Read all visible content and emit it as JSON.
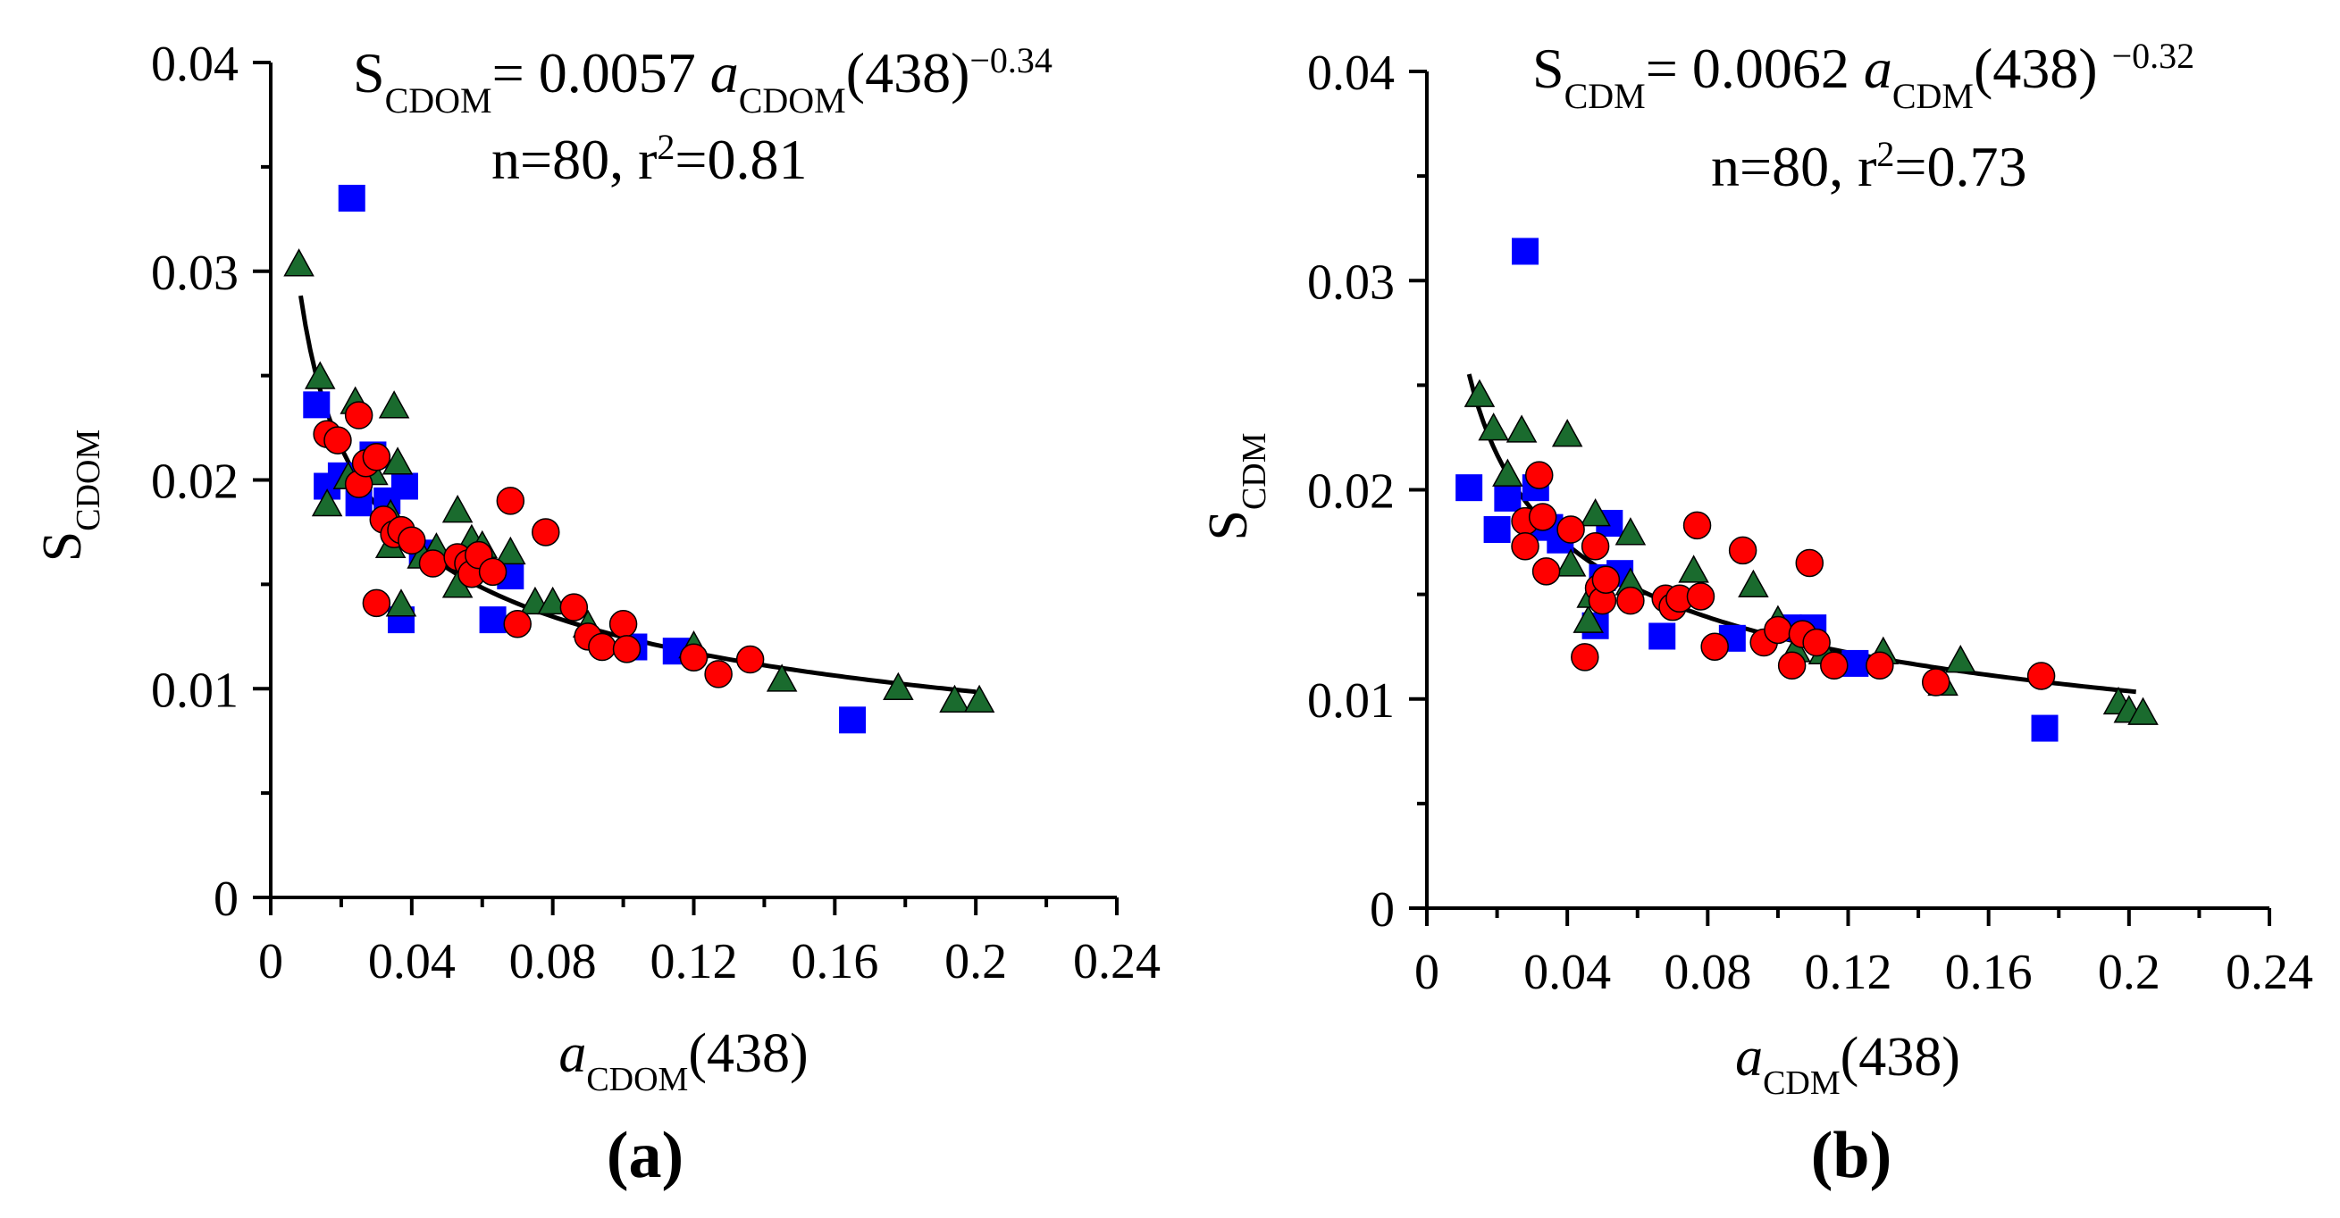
{
  "chart_data": [
    {
      "type": "scatter",
      "panel_label": "(a)",
      "equation": {
        "s_base": "S",
        "s_sub": "CDOM",
        "eq_mid": "= 0.0057 ",
        "a_base": "a",
        "a_sub": "CDOM",
        "arg": "(438)",
        "exp": "−0.34"
      },
      "stats": {
        "pre": "n=80, r",
        "sup": "2",
        "post": "=0.81"
      },
      "xlabel": {
        "base": "a",
        "sub": "CDOM",
        "rest": "(438)"
      },
      "ylabel": {
        "base": "S",
        "sub": "CDOM"
      },
      "xlim": [
        0,
        0.24
      ],
      "ylim": [
        0,
        0.04
      ],
      "x_ticks": [
        0,
        0.04,
        0.08,
        0.12,
        0.16,
        0.2,
        0.24
      ],
      "x_tick_labels": [
        "0",
        "0.04",
        "0.08",
        "0.12",
        "0.16",
        "0.2",
        "0.24"
      ],
      "y_ticks": [
        0,
        0.01,
        0.02,
        0.03,
        0.04
      ],
      "y_tick_labels": [
        "0",
        "0.01",
        "0.02",
        "0.03",
        "0.04"
      ],
      "fit": {
        "coef": 0.0057,
        "exp": -0.34,
        "x_range": [
          0.0085,
          0.2
        ]
      },
      "series": [
        {
          "name": "squares",
          "marker": "square",
          "color": "#0000ff",
          "points": [
            [
              0.023,
              0.0335
            ],
            [
              0.013,
              0.0236
            ],
            [
              0.016,
              0.0197
            ],
            [
              0.02,
              0.0202
            ],
            [
              0.025,
              0.0189
            ],
            [
              0.029,
              0.0212
            ],
            [
              0.033,
              0.019
            ],
            [
              0.038,
              0.0197
            ],
            [
              0.037,
              0.0133
            ],
            [
              0.043,
              0.0165
            ],
            [
              0.063,
              0.0133
            ],
            [
              0.068,
              0.0154
            ],
            [
              0.103,
              0.012
            ],
            [
              0.115,
              0.0118
            ],
            [
              0.165,
              0.0085
            ]
          ]
        },
        {
          "name": "triangles",
          "marker": "triangle",
          "color": "#1a6b2e",
          "points": [
            [
              0.008,
              0.0303
            ],
            [
              0.014,
              0.0249
            ],
            [
              0.016,
              0.0188
            ],
            [
              0.024,
              0.0237
            ],
            [
              0.022,
              0.0201
            ],
            [
              0.029,
              0.0203
            ],
            [
              0.034,
              0.0183
            ],
            [
              0.035,
              0.0235
            ],
            [
              0.036,
              0.0208
            ],
            [
              0.034,
              0.0168
            ],
            [
              0.037,
              0.014
            ],
            [
              0.043,
              0.0163
            ],
            [
              0.047,
              0.0167
            ],
            [
              0.053,
              0.0185
            ],
            [
              0.053,
              0.0149
            ],
            [
              0.057,
              0.0171
            ],
            [
              0.06,
              0.0168
            ],
            [
              0.068,
              0.0165
            ],
            [
              0.075,
              0.0141
            ],
            [
              0.08,
              0.0141
            ],
            [
              0.09,
              0.013
            ],
            [
              0.12,
              0.012
            ],
            [
              0.145,
              0.0104
            ],
            [
              0.178,
              0.01
            ],
            [
              0.194,
              0.0094
            ],
            [
              0.201,
              0.0094
            ]
          ]
        },
        {
          "name": "circles",
          "marker": "circle",
          "color": "#ff0000",
          "points": [
            [
              0.016,
              0.0222
            ],
            [
              0.019,
              0.0219
            ],
            [
              0.025,
              0.0231
            ],
            [
              0.025,
              0.0198
            ],
            [
              0.027,
              0.0208
            ],
            [
              0.03,
              0.0211
            ],
            [
              0.03,
              0.0141
            ],
            [
              0.032,
              0.0181
            ],
            [
              0.035,
              0.0174
            ],
            [
              0.037,
              0.0176
            ],
            [
              0.04,
              0.0171
            ],
            [
              0.046,
              0.016
            ],
            [
              0.053,
              0.0163
            ],
            [
              0.056,
              0.016
            ],
            [
              0.057,
              0.0155
            ],
            [
              0.059,
              0.0164
            ],
            [
              0.063,
              0.0156
            ],
            [
              0.068,
              0.019
            ],
            [
              0.07,
              0.0131
            ],
            [
              0.078,
              0.0175
            ],
            [
              0.086,
              0.0139
            ],
            [
              0.09,
              0.0125
            ],
            [
              0.094,
              0.012
            ],
            [
              0.1,
              0.0131
            ],
            [
              0.101,
              0.0119
            ],
            [
              0.12,
              0.0115
            ],
            [
              0.127,
              0.0107
            ],
            [
              0.136,
              0.0114
            ]
          ]
        }
      ]
    },
    {
      "type": "scatter",
      "panel_label": "(b)",
      "equation": {
        "s_base": "S",
        "s_sub": "CDM",
        "eq_mid": "= 0.0062 ",
        "a_base": "a",
        "a_sub": "CDM",
        "arg": "(438) ",
        "exp": "−0.32"
      },
      "stats": {
        "pre": "n=80, r",
        "sup": "2",
        "post": "=0.73"
      },
      "xlabel": {
        "base": "a",
        "sub": "CDM",
        "rest": "(438)"
      },
      "ylabel": {
        "base": "S",
        "sub": "CDM"
      },
      "xlim": [
        0,
        0.24
      ],
      "ylim": [
        0,
        0.04
      ],
      "x_ticks": [
        0,
        0.04,
        0.08,
        0.12,
        0.16,
        0.2,
        0.24
      ],
      "x_tick_labels": [
        "0",
        "0.04",
        "0.08",
        "0.12",
        "0.16",
        "0.2",
        "0.24"
      ],
      "y_ticks": [
        0,
        0.01,
        0.02,
        0.03,
        0.04
      ],
      "y_tick_labels": [
        "0",
        "0.01",
        "0.02",
        "0.03",
        "0.04"
      ],
      "fit": {
        "coef": 0.0062,
        "exp": -0.32,
        "x_range": [
          0.012,
          0.202
        ]
      },
      "series": [
        {
          "name": "squares",
          "marker": "square",
          "color": "#0000ff",
          "points": [
            [
              0.028,
              0.0314
            ],
            [
              0.012,
              0.0201
            ],
            [
              0.02,
              0.0181
            ],
            [
              0.023,
              0.0196
            ],
            [
              0.031,
              0.0201
            ],
            [
              0.033,
              0.0183
            ],
            [
              0.035,
              0.0182
            ],
            [
              0.038,
              0.0176
            ],
            [
              0.048,
              0.0135
            ],
            [
              0.05,
              0.0158
            ],
            [
              0.052,
              0.0184
            ],
            [
              0.055,
              0.016
            ],
            [
              0.067,
              0.013
            ],
            [
              0.087,
              0.0129
            ],
            [
              0.103,
              0.0134
            ],
            [
              0.11,
              0.0134
            ],
            [
              0.122,
              0.0117
            ],
            [
              0.176,
              0.0086
            ]
          ]
        },
        {
          "name": "triangles",
          "marker": "triangle",
          "color": "#1a6b2e",
          "points": [
            [
              0.015,
              0.0245
            ],
            [
              0.019,
              0.0229
            ],
            [
              0.023,
              0.0207
            ],
            [
              0.027,
              0.0228
            ],
            [
              0.04,
              0.0226
            ],
            [
              0.041,
              0.0164
            ],
            [
              0.046,
              0.0137
            ],
            [
              0.047,
              0.0149
            ],
            [
              0.048,
              0.0188
            ],
            [
              0.058,
              0.0179
            ],
            [
              0.058,
              0.0155
            ],
            [
              0.076,
              0.0161
            ],
            [
              0.093,
              0.0154
            ],
            [
              0.1,
              0.0137
            ],
            [
              0.105,
              0.0123
            ],
            [
              0.113,
              0.0122
            ],
            [
              0.13,
              0.0122
            ],
            [
              0.147,
              0.0107
            ],
            [
              0.152,
              0.0118
            ],
            [
              0.197,
              0.0098
            ],
            [
              0.2,
              0.0094
            ],
            [
              0.204,
              0.0093
            ]
          ]
        },
        {
          "name": "circles",
          "marker": "circle",
          "color": "#ff0000",
          "points": [
            [
              0.028,
              0.0185
            ],
            [
              0.028,
              0.0173
            ],
            [
              0.032,
              0.0207
            ],
            [
              0.033,
              0.0187
            ],
            [
              0.034,
              0.0161
            ],
            [
              0.041,
              0.0181
            ],
            [
              0.045,
              0.012
            ],
            [
              0.048,
              0.0173
            ],
            [
              0.049,
              0.0153
            ],
            [
              0.05,
              0.0147
            ],
            [
              0.051,
              0.0157
            ],
            [
              0.058,
              0.0147
            ],
            [
              0.068,
              0.0148
            ],
            [
              0.07,
              0.0144
            ],
            [
              0.072,
              0.0148
            ],
            [
              0.077,
              0.0183
            ],
            [
              0.078,
              0.0149
            ],
            [
              0.082,
              0.0125
            ],
            [
              0.09,
              0.0171
            ],
            [
              0.096,
              0.0127
            ],
            [
              0.1,
              0.0133
            ],
            [
              0.104,
              0.0116
            ],
            [
              0.107,
              0.0131
            ],
            [
              0.109,
              0.0165
            ],
            [
              0.111,
              0.0127
            ],
            [
              0.116,
              0.0116
            ],
            [
              0.129,
              0.0116
            ],
            [
              0.145,
              0.0108
            ],
            [
              0.175,
              0.0111
            ]
          ]
        }
      ]
    }
  ]
}
